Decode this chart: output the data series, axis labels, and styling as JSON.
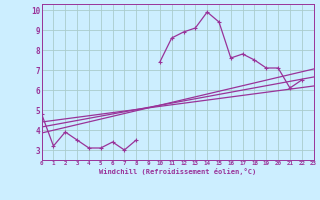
{
  "background_color": "#cceeff",
  "grid_color": "#aacccc",
  "line_color": "#993399",
  "xlabel": "Windchill (Refroidissement éolien,°C)",
  "xlim": [
    0,
    23
  ],
  "ylim": [
    2.5,
    10.3
  ],
  "yticks": [
    3,
    4,
    5,
    6,
    7,
    8,
    9,
    10
  ],
  "xticks": [
    0,
    1,
    2,
    3,
    4,
    5,
    6,
    7,
    8,
    9,
    10,
    11,
    12,
    13,
    14,
    15,
    16,
    17,
    18,
    19,
    20,
    21,
    22,
    23
  ],
  "series1_x": [
    0,
    1,
    2,
    3,
    4,
    5,
    6,
    7,
    8,
    9,
    10,
    11,
    12,
    13,
    14,
    15,
    16,
    17,
    18,
    19,
    20,
    21,
    22
  ],
  "series1_y": [
    4.8,
    3.2,
    3.9,
    3.5,
    3.1,
    3.1,
    3.4,
    3.0,
    3.5,
    null,
    7.4,
    8.6,
    8.9,
    9.1,
    9.9,
    9.4,
    7.6,
    7.8,
    7.5,
    7.1,
    7.1,
    6.1,
    6.5
  ],
  "series2_x": [
    0,
    23
  ],
  "series2_y": [
    3.85,
    7.05
  ],
  "series3_x": [
    0,
    23
  ],
  "series3_y": [
    4.15,
    6.65
  ],
  "series4_x": [
    0,
    23
  ],
  "series4_y": [
    4.4,
    6.2
  ]
}
